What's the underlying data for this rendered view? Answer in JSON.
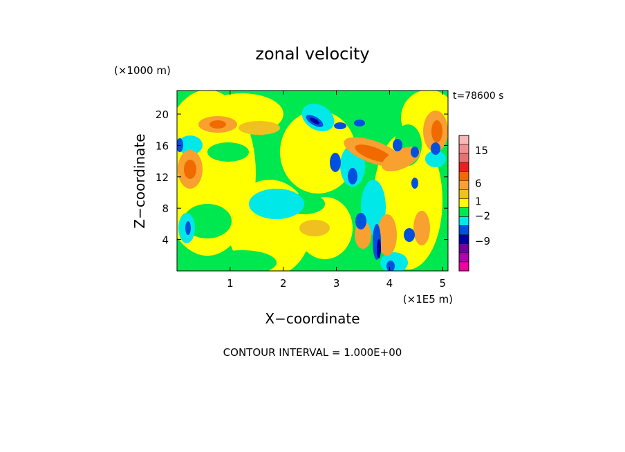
{
  "chart_data": {
    "type": "heatmap",
    "title": "zonal velocity",
    "time_label": "t=78600 s",
    "xlabel": "X−coordinate",
    "ylabel": "Z−coordinate",
    "x_unit": "(×1E5 m)",
    "y_unit": "(×1000 m)",
    "xlim": [
      0,
      5.1
    ],
    "ylim": [
      0,
      23
    ],
    "x_ticks": [
      "1",
      "2",
      "3",
      "4",
      "5"
    ],
    "y_ticks": [
      "4",
      "8",
      "12",
      "16",
      "20"
    ],
    "colorbar": {
      "labels": [
        "15",
        "6",
        "1",
        "−2",
        "−9"
      ],
      "levels": [
        {
          "color": "#F8B8B8"
        },
        {
          "color": "#F09090"
        },
        {
          "color": "#E87070"
        },
        {
          "color": "#E82020"
        },
        {
          "color": "#F06A00"
        },
        {
          "color": "#F8A030"
        },
        {
          "color": "#F0C020"
        },
        {
          "color": "#FFFF00"
        },
        {
          "color": "#00E850"
        },
        {
          "color": "#00E8E8"
        },
        {
          "color": "#0050E0"
        },
        {
          "color": "#0000A0"
        },
        {
          "color": "#7000A0"
        },
        {
          "color": "#B000B0"
        },
        {
          "color": "#F000A0"
        }
      ]
    },
    "contour_interval": "CONTOUR INTERVAL = 1.000E+00"
  }
}
